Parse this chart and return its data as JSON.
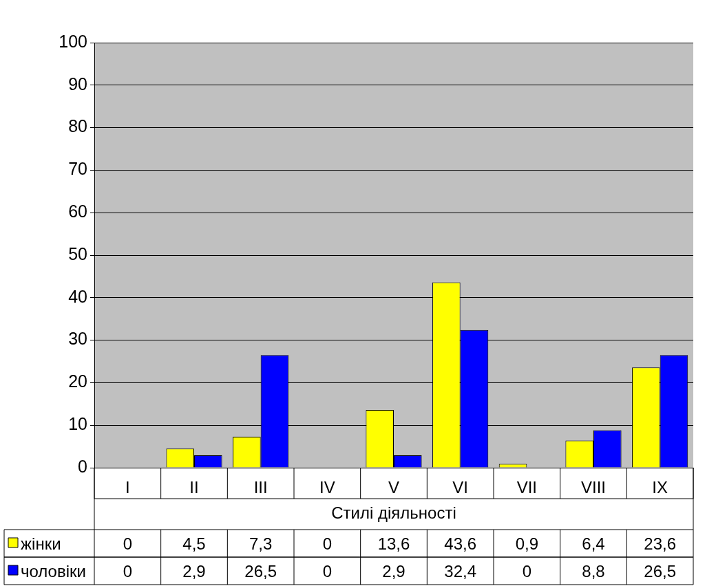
{
  "chart_data": {
    "type": "bar",
    "xlabel": "Стилі діяльності",
    "categories": [
      "I",
      "II",
      "III",
      "IV",
      "V",
      "VI",
      "VII",
      "VIII",
      "IX"
    ],
    "series": [
      {
        "name": "жінки",
        "color": "#ffff00",
        "values": [
          0,
          4.5,
          7.3,
          0,
          13.6,
          43.6,
          0.9,
          6.4,
          23.6
        ],
        "value_labels": [
          "0",
          "4,5",
          "7,3",
          "0",
          "13,6",
          "43,6",
          "0,9",
          "6,4",
          "23,6"
        ]
      },
      {
        "name": "чоловіки",
        "color": "#0000ff",
        "values": [
          0,
          2.9,
          26.5,
          0,
          2.9,
          32.4,
          0,
          8.8,
          26.5
        ],
        "value_labels": [
          "0",
          "2,9",
          "26,5",
          "0",
          "2,9",
          "32,4",
          "0",
          "8,8",
          "26,5"
        ]
      }
    ],
    "ylim": [
      0,
      100
    ],
    "yticks": [
      0,
      10,
      20,
      30,
      40,
      50,
      60,
      70,
      80,
      90,
      100
    ],
    "grid": "y",
    "legend": "bottom"
  }
}
